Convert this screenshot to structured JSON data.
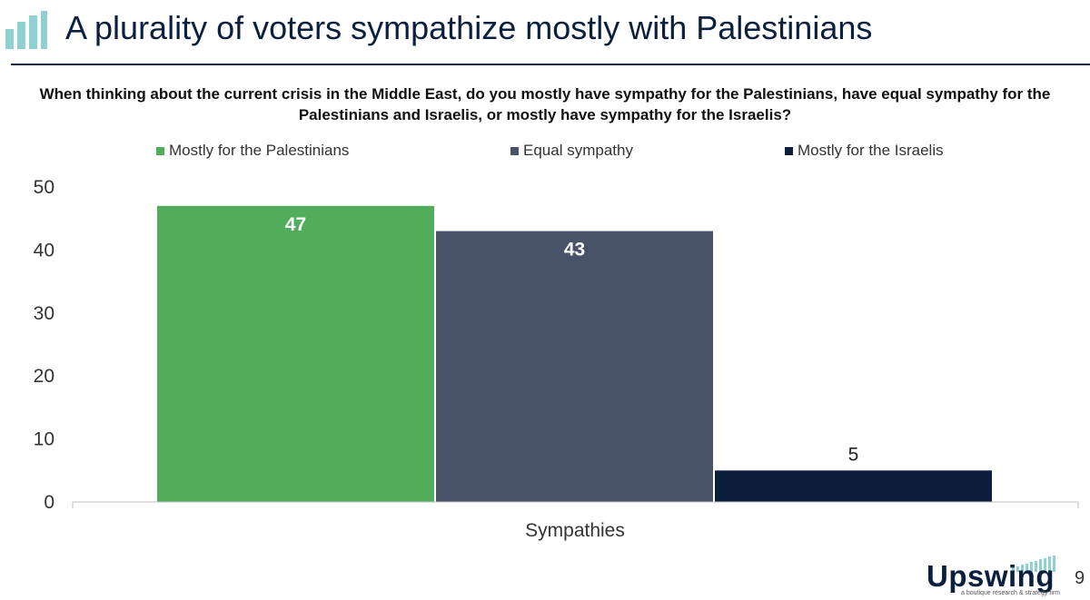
{
  "header": {
    "title": "A plurality of voters sympathize mostly with Palestinians"
  },
  "colors": {
    "accent": "#0b1f3f",
    "logo_teal": "#8fd1d1"
  },
  "chart_data": {
    "type": "bar",
    "question": "When thinking about the current crisis in the Middle East, do you mostly have sympathy for the Palestinians, have equal sympathy for the Palestinians and Israelis, or mostly have sympathy for the Israelis?",
    "categories": [
      "Sympathies"
    ],
    "series": [
      {
        "name": "Mostly for the Palestinians",
        "values": [
          47
        ],
        "color": "#52ad5b",
        "label_color": "#ffffff"
      },
      {
        "name": "Equal sympathy",
        "values": [
          43
        ],
        "color": "#48536a",
        "label_color": "#ffffff"
      },
      {
        "name": "Mostly for the Israelis",
        "values": [
          5
        ],
        "color": "#0c1e3b",
        "label_color": "#222222"
      }
    ],
    "ylim": [
      0,
      50
    ],
    "yticks": [
      0,
      10,
      20,
      30,
      40,
      50
    ],
    "grid": false,
    "legend": "top"
  },
  "brand": {
    "name": "Upswing",
    "tagline": "a boutique research & strategy firm"
  },
  "page_number": "9"
}
